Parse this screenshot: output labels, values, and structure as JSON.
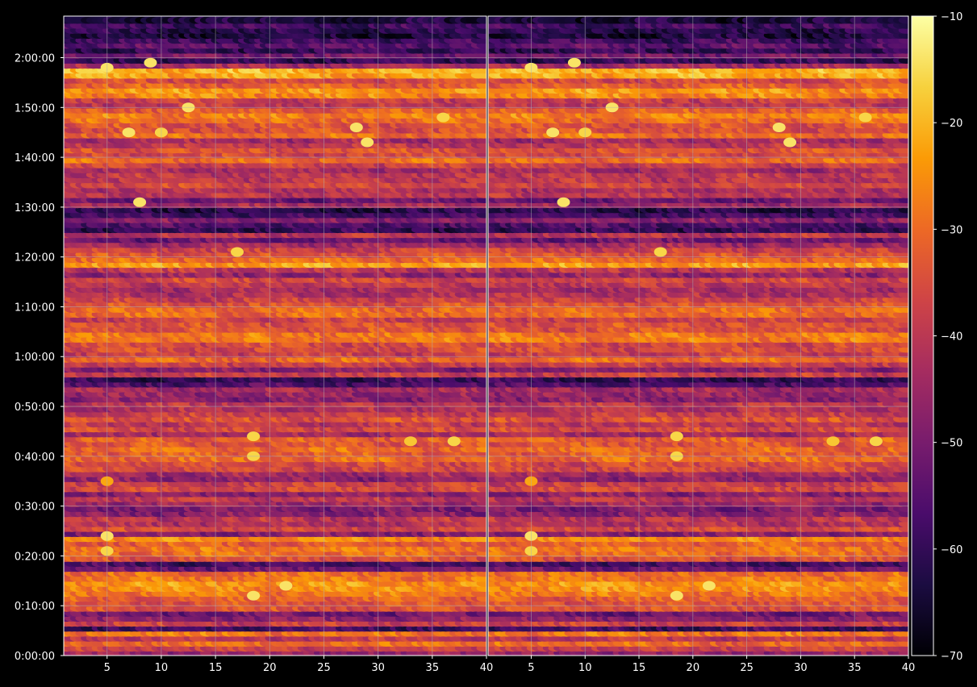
{
  "chart_data": {
    "type": "heatmap",
    "title": "",
    "background": "#000000",
    "colormap": "inferno",
    "colormap_stops": [
      "#000004",
      "#1b0c41",
      "#4a0c6b",
      "#781c6d",
      "#a52c60",
      "#cf4446",
      "#ed6925",
      "#fb9b06",
      "#f7d13d",
      "#fcffa4"
    ],
    "grid": true,
    "grid_color": "#b0b0b0",
    "color_range": [
      -70,
      -10
    ],
    "colorbar_ticks": [
      -10,
      -20,
      -30,
      -40,
      -50,
      -60,
      -70
    ],
    "colorbar_tick_labels": [
      "−10",
      "−20",
      "−30",
      "−40",
      "−50",
      "−60",
      "−70"
    ],
    "y_range_seconds": [
      0,
      7700
    ],
    "y_ticks_seconds": [
      0,
      600,
      1200,
      1800,
      2400,
      3000,
      3600,
      4200,
      4800,
      5400,
      6000,
      6600,
      7200
    ],
    "y_tick_labels": [
      "0:00:00",
      "0:10:00",
      "0:20:00",
      "0:30:00",
      "0:40:00",
      "0:50:00",
      "1:00:00",
      "1:10:00",
      "1:20:00",
      "1:30:00",
      "1:40:00",
      "1:50:00",
      "2:00:00"
    ],
    "panels": [
      {
        "x_range": [
          1,
          40
        ],
        "x_ticks": [
          5,
          10,
          15,
          20,
          25,
          30,
          35,
          40
        ],
        "x_tick_labels": [
          "5",
          "10",
          "15",
          "20",
          "25",
          "30",
          "35",
          "40"
        ]
      },
      {
        "x_range": [
          1,
          40
        ],
        "x_ticks": [
          5,
          10,
          15,
          20,
          25,
          30,
          35,
          40
        ],
        "x_tick_labels": [
          "5",
          "10",
          "15",
          "20",
          "25",
          "30",
          "35",
          "40"
        ]
      }
    ],
    "row_step_seconds": 60,
    "row_levels_dB": [
      -46,
      -38,
      -30,
      -40,
      -28,
      -58,
      -38,
      -48,
      -52,
      -34,
      -34,
      -32,
      -28,
      -25,
      -24,
      -28,
      -30,
      -52,
      -58,
      -34,
      -30,
      -28,
      -32,
      -26,
      -48,
      -36,
      -42,
      -40,
      -48,
      -50,
      -45,
      -40,
      -48,
      -36,
      -38,
      -48,
      -44,
      -36,
      -36,
      -30,
      -32,
      -30,
      -34,
      -32,
      -44,
      -36,
      -40,
      -34,
      -38,
      -42,
      -40,
      -48,
      -46,
      -44,
      -56,
      -60,
      -38,
      -48,
      -38,
      -30,
      -38,
      -36,
      -36,
      -28,
      -28,
      -34,
      -34,
      -38,
      -30,
      -30,
      -34,
      -38,
      -42,
      -44,
      -40,
      -36,
      -46,
      -40,
      -23,
      -30,
      -34,
      -38,
      -44,
      -52,
      -40,
      -60,
      -56,
      -48,
      -58,
      -62,
      -44,
      -52,
      -40,
      -42,
      -36,
      -40,
      -40,
      -44,
      -38,
      -30,
      -36,
      -34,
      -40,
      -44,
      -30,
      -35,
      -34,
      -30,
      -27,
      -32,
      -40,
      -38,
      -26,
      -24,
      -32,
      -36,
      -22,
      -20,
      -44,
      -60,
      -50,
      -60,
      -54,
      -58,
      -64,
      -62,
      -58,
      -64
    ],
    "hotspots": [
      {
        "t": 1440,
        "x": 5,
        "dB": -14
      },
      {
        "t": 1260,
        "x": 5,
        "dB": -16
      },
      {
        "t": 2100,
        "x": 5,
        "dB": -22
      },
      {
        "t": 720,
        "x": 18.5,
        "dB": -14
      },
      {
        "t": 840,
        "x": 21.5,
        "dB": -14
      },
      {
        "t": 2640,
        "x": 18.5,
        "dB": -16
      },
      {
        "t": 2400,
        "x": 18.5,
        "dB": -16
      },
      {
        "t": 2580,
        "x": 37,
        "dB": -16
      },
      {
        "t": 2580,
        "x": 33,
        "dB": -18
      },
      {
        "t": 4860,
        "x": 17,
        "dB": -16
      },
      {
        "t": 5460,
        "x": 8,
        "dB": -14
      },
      {
        "t": 6600,
        "x": 12.5,
        "dB": -14
      },
      {
        "t": 7080,
        "x": 5,
        "dB": -14
      },
      {
        "t": 7140,
        "x": 9,
        "dB": -14
      },
      {
        "t": 6300,
        "x": 7,
        "dB": -14
      },
      {
        "t": 6300,
        "x": 10,
        "dB": -16
      },
      {
        "t": 6180,
        "x": 29,
        "dB": -14
      },
      {
        "t": 6360,
        "x": 28,
        "dB": -14
      },
      {
        "t": 6480,
        "x": 36,
        "dB": -16
      }
    ]
  }
}
